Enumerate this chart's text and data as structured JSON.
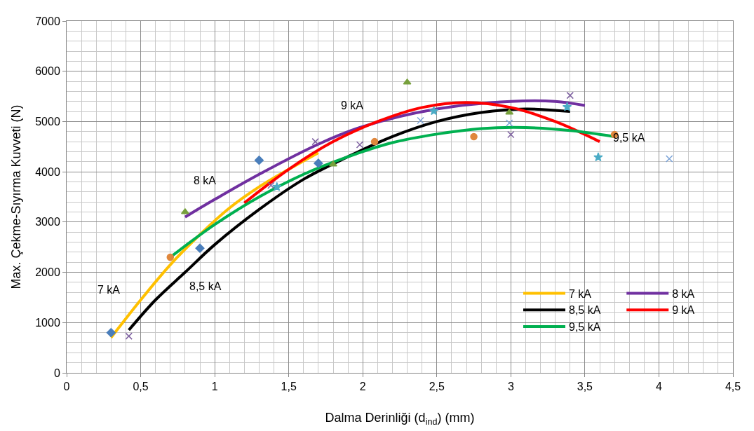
{
  "chart_data": {
    "type": "scatter",
    "xlabel": "Dalma Derinliği (d$_{ind}$) (mm)",
    "ylabel": "Max. Çekme-Sıyırma Kuvveti (N)",
    "xlim": [
      0,
      4.5
    ],
    "xticks": [
      0,
      {
        "value": 0.5,
        "label": "0,5"
      },
      1,
      {
        "value": 1.5,
        "label": "1,5"
      },
      2,
      {
        "value": 2.5,
        "label": "2,5"
      },
      3,
      {
        "value": 3.5,
        "label": "3,5"
      },
      4,
      {
        "value": 4.5,
        "label": "4,5"
      }
    ],
    "ylim": [
      0,
      7000
    ],
    "yticks": [
      0,
      1000,
      2000,
      3000,
      4000,
      5000,
      6000,
      7000
    ],
    "grid": true,
    "legend": "bottom right",
    "series": [
      {
        "marker": "diamond",
        "color": "#4a7ebb",
        "x": [
          0.3,
          0.9,
          1.3,
          1.7
        ],
        "values": [
          800,
          2480,
          4230,
          4170
        ]
      },
      {
        "marker": "cross",
        "color": "#8064a2",
        "x": [
          0.42,
          1.38,
          1.68,
          1.98,
          3.0,
          3.4
        ],
        "values": [
          730,
          3730,
          4600,
          4540,
          4740,
          5520
        ]
      },
      {
        "marker": "triangle",
        "color": "#77a03c",
        "x": [
          0.8,
          1.8,
          2.3,
          2.99
        ],
        "values": [
          3200,
          4150,
          5780,
          5180
        ]
      },
      {
        "marker": "circle",
        "color": "#e0873c",
        "x": [
          0.7,
          2.08,
          2.75,
          3.7
        ],
        "values": [
          2300,
          4600,
          4700,
          4740
        ]
      },
      {
        "marker": "star",
        "color": "#4bacc6",
        "x": [
          1.42,
          2.48,
          3.38,
          3.59
        ],
        "values": [
          3700,
          5210,
          5290,
          4290
        ]
      },
      {
        "marker": "cross",
        "color": "#7ba3d8",
        "x": [
          2.39,
          2.99,
          4.07
        ],
        "values": [
          5020,
          4970,
          4260
        ]
      },
      {
        "type": "line",
        "name": "7 kA",
        "color": "#ffc000",
        "x": [
          0.3,
          0.5,
          0.7,
          0.9,
          1.1,
          1.3,
          1.5,
          1.7
        ],
        "values": [
          700,
          1450,
          2150,
          2750,
          3280,
          3700,
          4050,
          4380
        ]
      },
      {
        "type": "line",
        "name": "8 kA",
        "color": "#7030a0",
        "x": [
          0.8,
          1.0,
          1.3,
          1.7,
          2.0,
          2.5,
          3.0,
          3.3,
          3.5
        ],
        "values": [
          3100,
          3450,
          3950,
          4550,
          4900,
          5250,
          5400,
          5400,
          5320
        ]
      },
      {
        "type": "line",
        "name": "8,5 kA",
        "color": "#000000",
        "x": [
          0.42,
          0.6,
          0.8,
          1.0,
          1.3,
          1.6,
          1.9,
          2.2,
          2.5,
          2.8,
          3.1,
          3.4
        ],
        "values": [
          850,
          1450,
          2000,
          2550,
          3250,
          3850,
          4300,
          4700,
          5000,
          5180,
          5250,
          5200
        ]
      },
      {
        "type": "line",
        "name": "9 kA",
        "color": "#ff0000",
        "x": [
          1.2,
          1.5,
          1.8,
          2.1,
          2.4,
          2.7,
          3.0,
          3.3,
          3.6
        ],
        "values": [
          3380,
          4050,
          4600,
          5000,
          5280,
          5380,
          5280,
          5000,
          4600
        ]
      },
      {
        "type": "line",
        "name": "9,5 kA",
        "color": "#00b050",
        "x": [
          0.7,
          1.0,
          1.3,
          1.6,
          1.9,
          2.2,
          2.5,
          2.8,
          3.1,
          3.4,
          3.7
        ],
        "values": [
          2300,
          2950,
          3500,
          3950,
          4300,
          4580,
          4750,
          4860,
          4880,
          4820,
          4700
        ]
      }
    ],
    "annotations": [
      "7 kA",
      "8,5 kA",
      "8 kA",
      "9 kA",
      "9,5 kA"
    ]
  }
}
